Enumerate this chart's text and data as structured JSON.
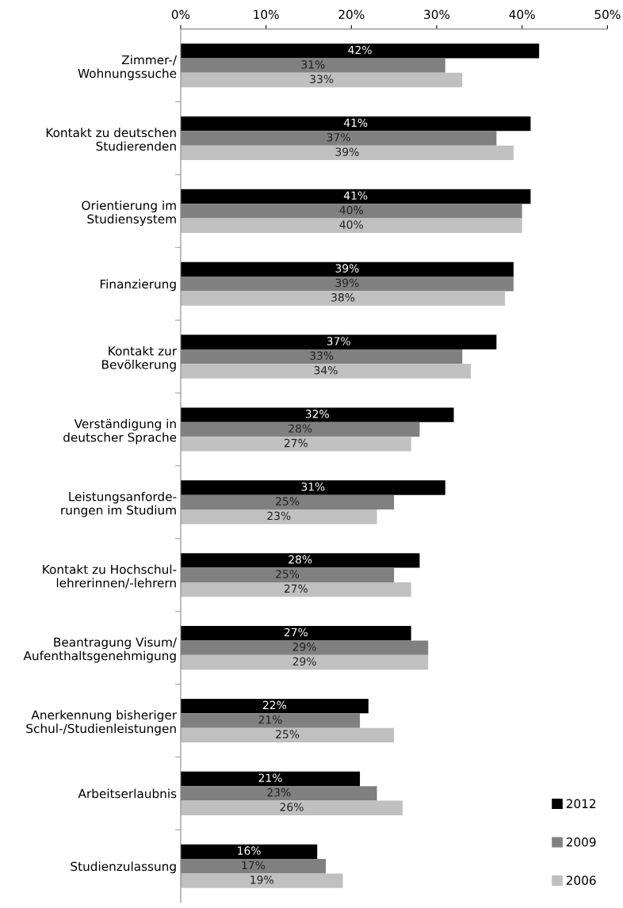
{
  "chart_data": {
    "type": "bar",
    "orientation": "horizontal",
    "categories": [
      "Zimmer-/\nWohnungssuche",
      "Kontakt zu deutschen\nStudierenden",
      "Orientierung im\nStudiensystem",
      "Finanzierung",
      "Kontakt zur\nBevölkerung",
      "Verständigung in\ndeutscher Sprache",
      "Leistungsanforde-\nrungen im Studium",
      "Kontakt zu Hochschul-\nlehrerinnen/-lehrern",
      "Beantragung Visum/\nAufenthaltsgenehmigung",
      "Anerkennung bisheriger\nSchul-/Studienleistungen",
      "Arbeitserlaubnis",
      "Studienzulassung"
    ],
    "series": [
      {
        "name": "2012",
        "color": "#000000",
        "values": [
          42,
          41,
          41,
          39,
          37,
          32,
          31,
          28,
          27,
          22,
          21,
          16
        ],
        "value_labels": [
          "42%",
          "41%",
          "41%",
          "39%",
          "37%",
          "32%",
          "31%",
          "28%",
          "27%",
          "22%",
          "21%",
          "16%"
        ]
      },
      {
        "name": "2009",
        "color": "#808080",
        "values": [
          31,
          37,
          40,
          39,
          33,
          28,
          25,
          25,
          29,
          21,
          23,
          17
        ],
        "value_labels": [
          "31%",
          "37%",
          "40%",
          "39%",
          "33%",
          "28%",
          "25%",
          "25%",
          "29%",
          "21%",
          "23%",
          "17%"
        ]
      },
      {
        "name": "2006",
        "color": "#c0c0c0",
        "values": [
          33,
          39,
          40,
          38,
          34,
          27,
          23,
          27,
          29,
          25,
          26,
          19
        ],
        "value_labels": [
          "33%",
          "39%",
          "40%",
          "38%",
          "34%",
          "27%",
          "23%",
          "27%",
          "29%",
          "25%",
          "26%",
          "19%"
        ]
      }
    ],
    "xlim": [
      0,
      50
    ],
    "xticks": [
      {
        "value": 0,
        "label": "0%"
      },
      {
        "value": 10,
        "label": "10%"
      },
      {
        "value": 20,
        "label": "20%"
      },
      {
        "value": 30,
        "label": "30%"
      },
      {
        "value": 40,
        "label": "40%"
      },
      {
        "value": 50,
        "label": "50%"
      }
    ],
    "grid": false,
    "legend": "bottom right"
  }
}
